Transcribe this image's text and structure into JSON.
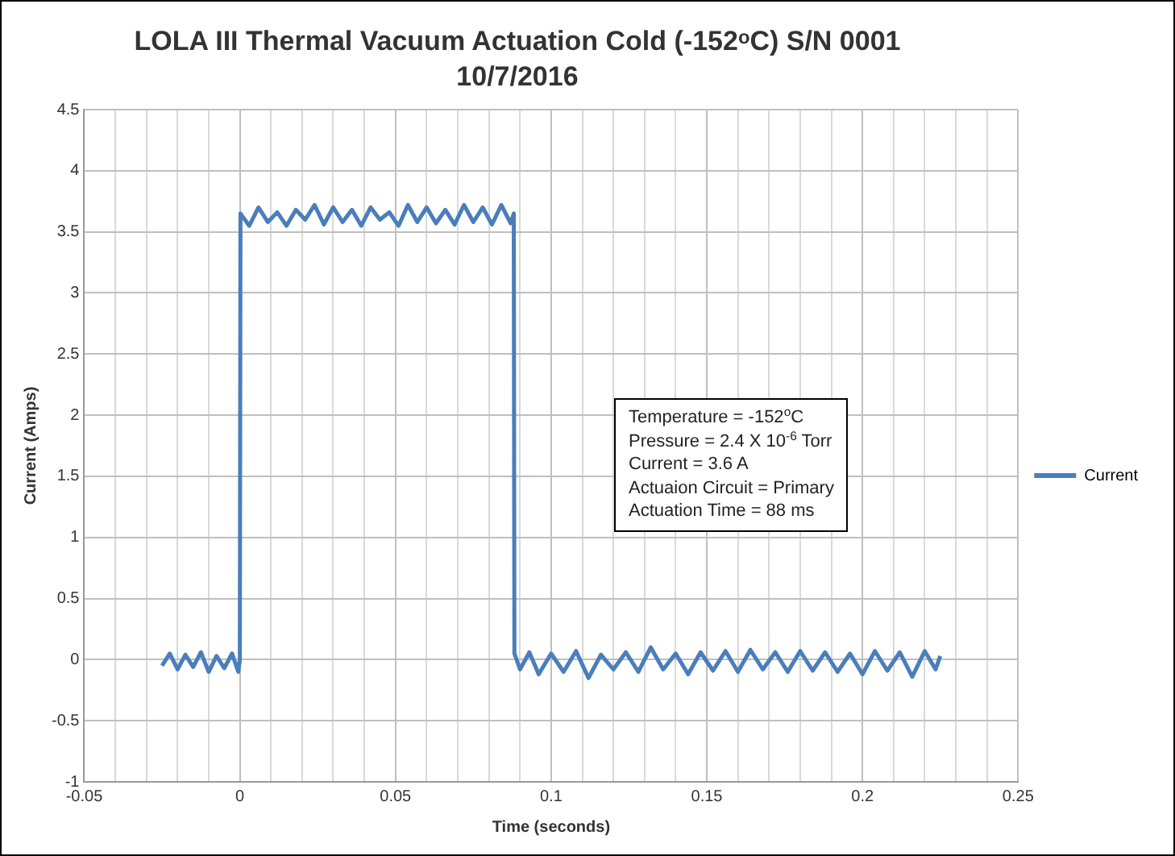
{
  "chart_data": {
    "type": "line",
    "title": "LOLA III Thermal Vacuum Actuation Cold (-152$^{o}$C) S/N 0001",
    "subtitle": "10/7/2016",
    "xlabel": "Time (seconds)",
    "ylabel": "Current (Amps)",
    "annotations": [
      "Temperature = -152$^{o}$C",
      "Pressure = 2.4 X 10$^{-6}$ Torr",
      "Current = 3.6 A",
      "Actuaion Circuit = Primary",
      "Actuation Time = 88 ms"
    ],
    "x": [
      -0.025,
      -0.0225,
      -0.02,
      -0.0175,
      -0.015,
      -0.0125,
      -0.01,
      -0.0075,
      -0.005,
      -0.0025,
      -0.0005,
      0,
      0.0002,
      0.003,
      0.006,
      0.009,
      0.012,
      0.015,
      0.018,
      0.021,
      0.024,
      0.027,
      0.03,
      0.033,
      0.036,
      0.039,
      0.042,
      0.045,
      0.048,
      0.051,
      0.054,
      0.057,
      0.06,
      0.063,
      0.066,
      0.069,
      0.072,
      0.075,
      0.078,
      0.081,
      0.084,
      0.087,
      0.088,
      0.0882,
      0.09,
      0.093,
      0.096,
      0.1,
      0.104,
      0.108,
      0.112,
      0.116,
      0.12,
      0.124,
      0.128,
      0.132,
      0.136,
      0.14,
      0.144,
      0.148,
      0.152,
      0.156,
      0.16,
      0.164,
      0.168,
      0.172,
      0.176,
      0.18,
      0.184,
      0.188,
      0.192,
      0.196,
      0.2,
      0.204,
      0.208,
      0.212,
      0.216,
      0.22,
      0.2235,
      0.225
    ],
    "series": [
      {
        "name": "Current",
        "color": "#4a7ebb",
        "values": [
          -0.05,
          0.05,
          -0.08,
          0.04,
          -0.06,
          0.06,
          -0.1,
          0.03,
          -0.07,
          0.05,
          -0.1,
          0,
          3.65,
          3.55,
          3.7,
          3.58,
          3.66,
          3.55,
          3.68,
          3.6,
          3.72,
          3.56,
          3.7,
          3.58,
          3.68,
          3.55,
          3.7,
          3.6,
          3.66,
          3.55,
          3.72,
          3.58,
          3.7,
          3.57,
          3.68,
          3.56,
          3.72,
          3.58,
          3.7,
          3.56,
          3.72,
          3.57,
          3.65,
          0.05,
          -0.08,
          0.06,
          -0.12,
          0.05,
          -0.1,
          0.07,
          -0.15,
          0.04,
          -0.08,
          0.06,
          -0.1,
          0.1,
          -0.08,
          0.05,
          -0.12,
          0.06,
          -0.09,
          0.07,
          -0.1,
          0.08,
          -0.08,
          0.06,
          -0.1,
          0.07,
          -0.09,
          0.06,
          -0.1,
          0.05,
          -0.12,
          0.07,
          -0.09,
          0.06,
          -0.14,
          0.07,
          -0.08,
          0.03
        ]
      }
    ],
    "xlim": [
      -0.05,
      0.25
    ],
    "xticks": [
      -0.05,
      {
        "value": -0.04,
        "label": null
      },
      {
        "value": -0.03,
        "label": null
      },
      {
        "value": -0.02,
        "label": null
      },
      {
        "value": -0.01,
        "label": null
      },
      0,
      {
        "value": 0.01,
        "label": null
      },
      {
        "value": 0.02,
        "label": null
      },
      {
        "value": 0.03,
        "label": null
      },
      {
        "value": 0.04,
        "label": null
      },
      0.05,
      {
        "value": 0.06,
        "label": null
      },
      {
        "value": 0.07,
        "label": null
      },
      {
        "value": 0.08,
        "label": null
      },
      {
        "value": 0.09,
        "label": null
      },
      0.1,
      {
        "value": 0.11,
        "label": null
      },
      {
        "value": 0.12,
        "label": null
      },
      {
        "value": 0.13,
        "label": null
      },
      {
        "value": 0.14,
        "label": null
      },
      0.15,
      {
        "value": 0.16,
        "label": null
      },
      {
        "value": 0.17,
        "label": null
      },
      {
        "value": 0.18,
        "label": null
      },
      {
        "value": 0.19,
        "label": null
      },
      0.2,
      {
        "value": 0.21,
        "label": null
      },
      {
        "value": 0.22,
        "label": null
      },
      {
        "value": 0.23,
        "label": null
      },
      {
        "value": 0.24,
        "label": null
      },
      0.25
    ],
    "ylim": [
      -1,
      4.5
    ],
    "yticks": [
      -1,
      -0.5,
      0,
      0.5,
      1,
      1.5,
      2,
      2.5,
      3,
      3.5,
      4,
      4.5
    ],
    "grid": true,
    "legend": "right",
    "marker": "none",
    "line_style": "solid"
  }
}
